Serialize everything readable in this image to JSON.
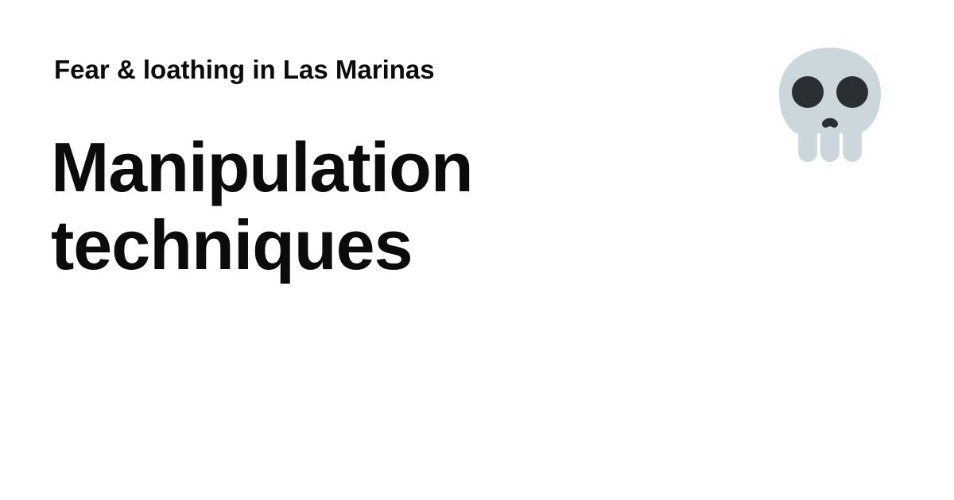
{
  "site": {
    "name": "Fear & loathing in Las Marinas"
  },
  "post": {
    "title": "Manipulation techniques"
  },
  "emoji": {
    "icon": "skull-icon",
    "skull_color": "#CCD6DD",
    "feature_color": "#292F33"
  }
}
